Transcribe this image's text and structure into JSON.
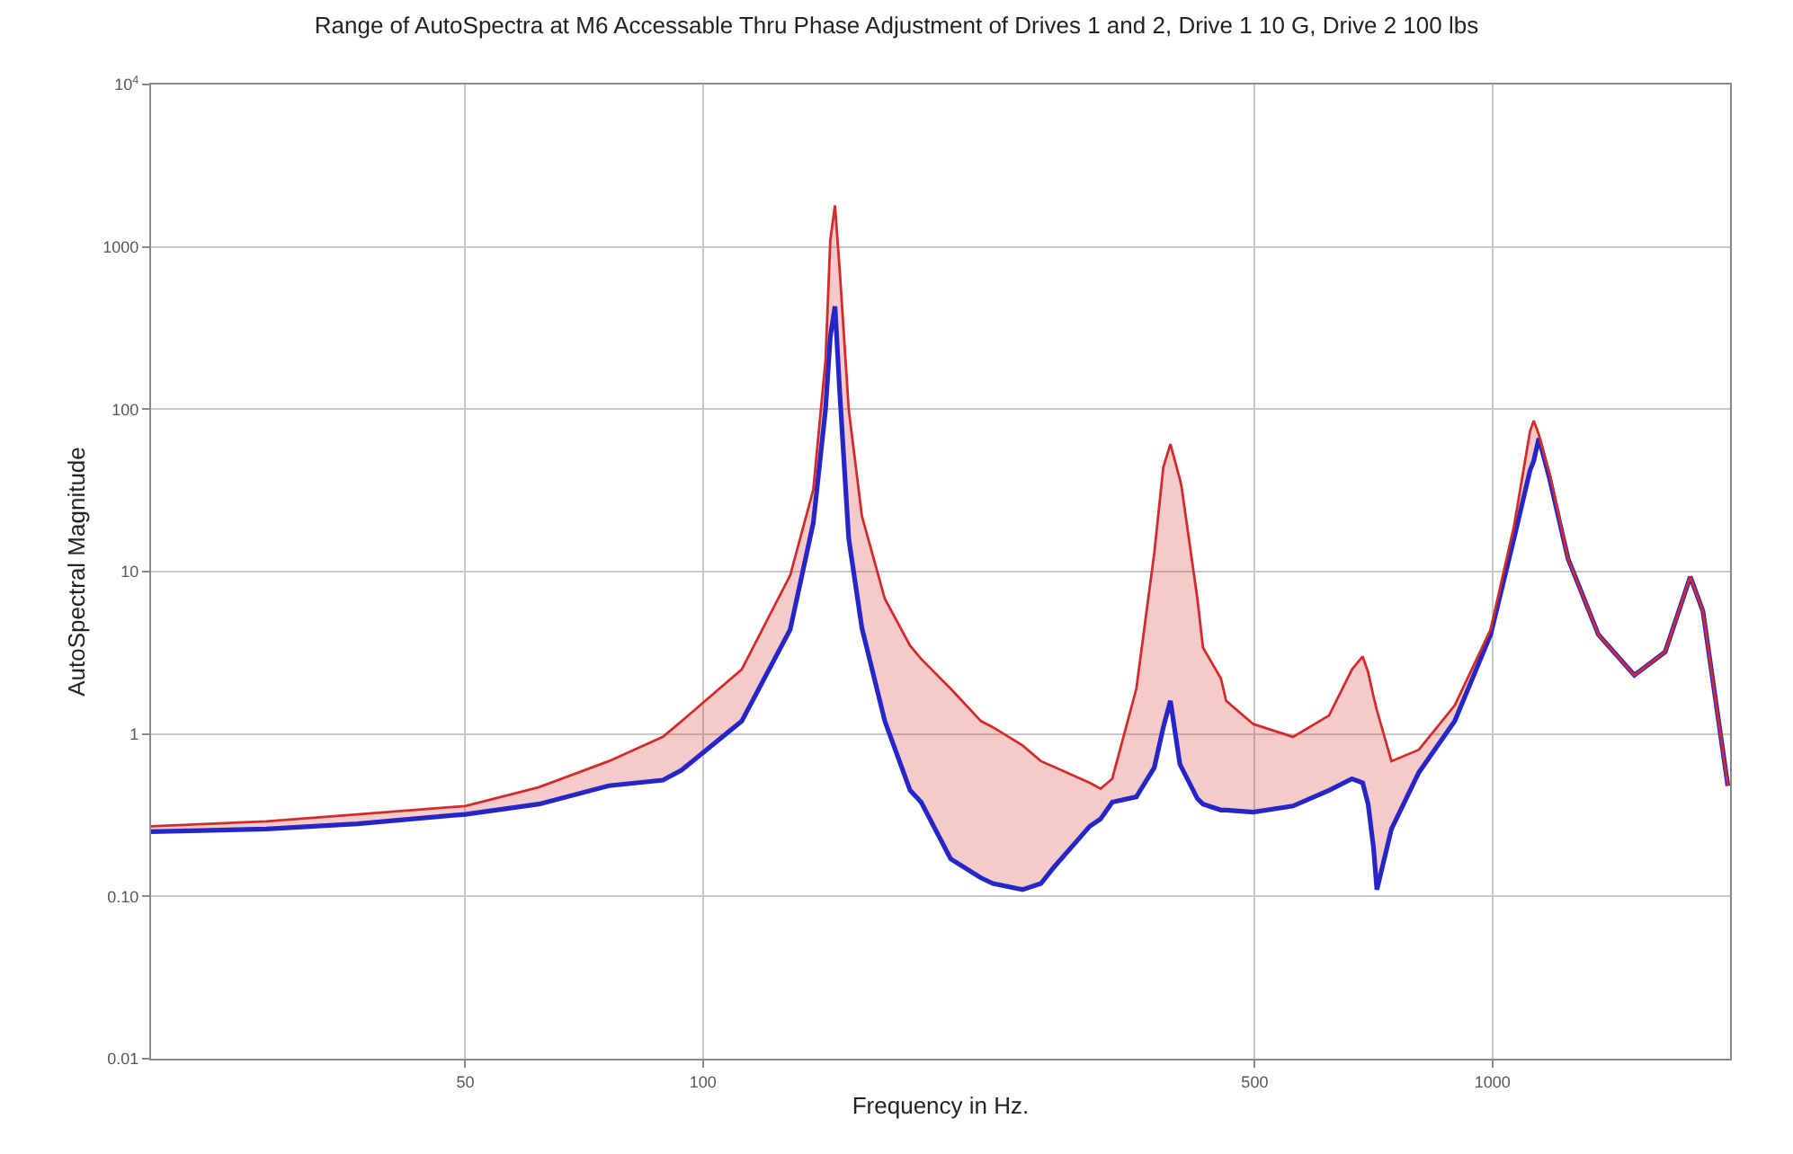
{
  "chart_data": {
    "type": "line",
    "title": "Range of AutoSpectra at M6 Accessable Thru Phase Adjustment of Drives 1 and 2, Drive 1 10 G, Drive 2 100 lbs",
    "xlabel": "Frequency in Hz.",
    "ylabel": "AutoSpectral Magnitude",
    "log": "xy",
    "grid": true,
    "marker": "none",
    "line_style": "solid",
    "xlim": [
      20,
      2000
    ],
    "xticks": [
      50,
      100,
      500,
      1000
    ],
    "ylim": [
      0.01,
      10000
    ],
    "yticks": [
      0.01,
      {
        "value": 0.1,
        "label": "0.10"
      },
      1,
      10,
      100,
      1000,
      {
        "value": 10000,
        "label": "10$^{4}$"
      }
    ],
    "x": [
      20,
      28,
      36.5,
      50,
      62,
      76,
      89,
      94,
      112,
      129,
      138,
      143,
      145,
      147,
      149,
      153,
      159,
      170,
      183,
      189,
      206,
      225,
      233,
      254,
      268,
      278,
      309,
      319,
      330,
      354,
      373,
      383,
      391,
      402,
      404,
      423,
      430,
      453,
      460,
      498,
      559,
      621,
      664,
      685,
      696,
      707,
      714,
      745,
      807,
      896,
      995,
      1065,
      1116,
      1128,
      1145,
      1163,
      1182,
      1247,
      1362,
      1513,
      1655,
      1781,
      1848,
      1987
    ],
    "series": [
      {
        "color": "#2626c8",
        "values": [
          0.25,
          0.26,
          0.28,
          0.32,
          0.37,
          0.48,
          0.52,
          0.6,
          1.2,
          4.4,
          20,
          100,
          280,
          430,
          130,
          16,
          4.5,
          1.2,
          0.45,
          0.38,
          0.17,
          0.13,
          0.12,
          0.11,
          0.12,
          0.15,
          0.27,
          0.3,
          0.38,
          0.41,
          0.62,
          1.1,
          1.6,
          0.65,
          0.62,
          0.4,
          0.37,
          0.34,
          0.34,
          0.33,
          0.36,
          0.45,
          0.53,
          0.5,
          0.37,
          0.2,
          0.11,
          0.26,
          0.58,
          1.2,
          4.1,
          16,
          42,
          48,
          66,
          50,
          37,
          12,
          4.1,
          2.3,
          3.2,
          9.3,
          5.7,
          0.48
        ]
      },
      {
        "type": "area",
        "color": "#d42a2a",
        "values": [
          0.27,
          0.29,
          0.32,
          0.36,
          0.47,
          0.68,
          0.96,
          1.2,
          2.5,
          9.5,
          32,
          200,
          1100,
          1800,
          730,
          100,
          22,
          6.8,
          3.5,
          2.9,
          1.9,
          1.2,
          1.1,
          0.85,
          0.68,
          0.63,
          0.5,
          0.46,
          0.53,
          1.9,
          13,
          44,
          61,
          37,
          33,
          6.8,
          3.4,
          2.2,
          1.6,
          1.15,
          0.96,
          1.3,
          2.5,
          3.0,
          2.4,
          1.7,
          1.4,
          0.68,
          0.8,
          1.5,
          4.4,
          19,
          73,
          85,
          70,
          52,
          40,
          12,
          4.1,
          2.3,
          3.2,
          9.3,
          5.7,
          0.48
        ]
      }
    ]
  }
}
